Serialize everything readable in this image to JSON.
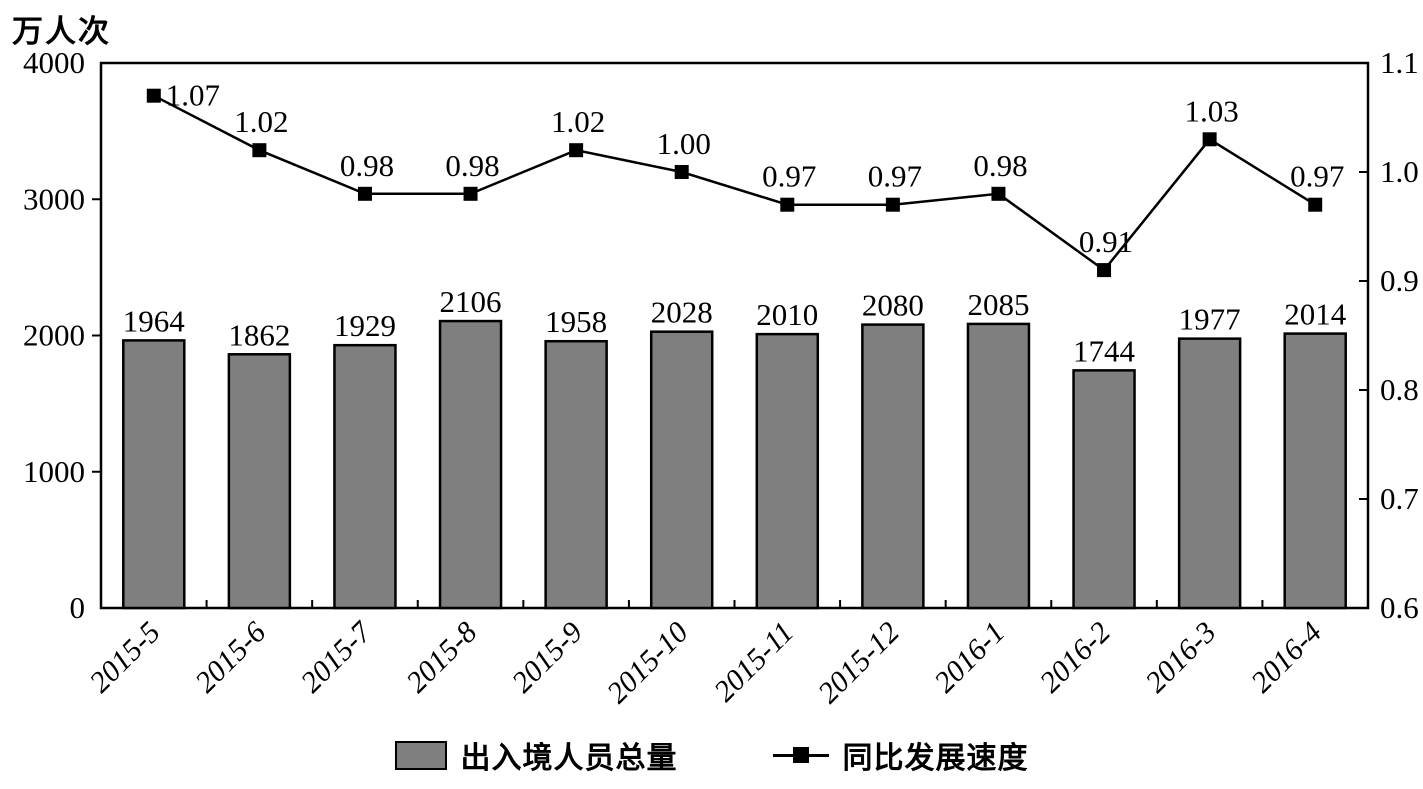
{
  "unit_label": "万人次",
  "legend": {
    "bar_label": "出入境人员总量",
    "line_label": "同比发展速度"
  },
  "colors": {
    "bar_fill": "#7f7f7f",
    "stroke": "#000000",
    "background": "#ffffff"
  },
  "chart_data": {
    "type": "bar+line",
    "title": "",
    "xlabel": "",
    "ylabel_left": "万人次",
    "categories": [
      "2015-5",
      "2015-6",
      "2015-7",
      "2015-8",
      "2015-9",
      "2015-10",
      "2015-11",
      "2015-12",
      "2016-1",
      "2016-2",
      "2016-3",
      "2016-4"
    ],
    "series": [
      {
        "name": "出入境人员总量",
        "type": "bar",
        "axis": "left",
        "color": "#7f7f7f",
        "values": [
          1964,
          1862,
          1929,
          2106,
          1958,
          2028,
          2010,
          2080,
          2085,
          1744,
          1977,
          2014
        ]
      },
      {
        "name": "同比发展速度",
        "type": "line",
        "axis": "right",
        "color": "#000000",
        "marker": "square",
        "values": [
          1.07,
          1.02,
          0.98,
          0.98,
          1.02,
          1.0,
          0.97,
          0.97,
          0.98,
          0.91,
          1.03,
          0.97
        ]
      }
    ],
    "left_axis": {
      "min": 0,
      "max": 4000,
      "ticks": [
        0,
        1000,
        2000,
        3000,
        4000
      ]
    },
    "right_axis": {
      "min": 0.6,
      "max": 1.1,
      "ticks": [
        0.6,
        0.7,
        0.8,
        0.9,
        1.0,
        1.1
      ]
    },
    "grid": false,
    "legend_position": "bottom",
    "data_labels": true
  }
}
